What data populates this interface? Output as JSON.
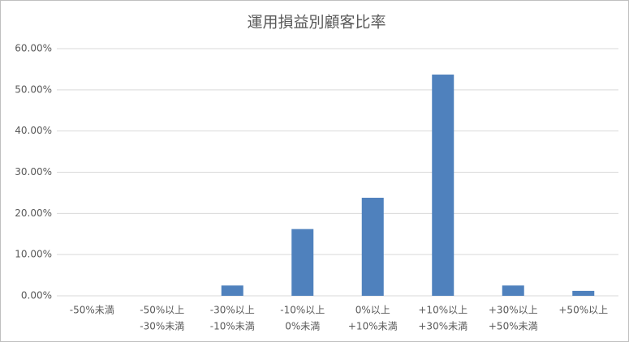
{
  "chart_data": {
    "type": "bar",
    "title": "運用損益別顧客比率",
    "categories": [
      [
        "-50%未満"
      ],
      [
        "-50%以上",
        "-30%未満"
      ],
      [
        "-30%以上",
        "-10%未満"
      ],
      [
        "-10%以上",
        "0%未満"
      ],
      [
        "0%以上",
        "+10%未満"
      ],
      [
        "+10%以上",
        "+30%未満"
      ],
      [
        "+30%以上",
        "+50%未満"
      ],
      [
        "+50%以上"
      ]
    ],
    "values": [
      0,
      0,
      2.5,
      16.2,
      23.8,
      53.7,
      2.5,
      1.2
    ],
    "color": "#4f81bd",
    "ylim": [
      0,
      60
    ],
    "yticks": [
      {
        "value": 0,
        "label": "0.00%"
      },
      {
        "value": 10,
        "label": "10.00%"
      },
      {
        "value": 20,
        "label": "20.00%"
      },
      {
        "value": 30,
        "label": "30.00%"
      },
      {
        "value": 40,
        "label": "40.00%"
      },
      {
        "value": 50,
        "label": "50.00%"
      },
      {
        "value": 60,
        "label": "60.00%"
      }
    ],
    "grid": true
  }
}
